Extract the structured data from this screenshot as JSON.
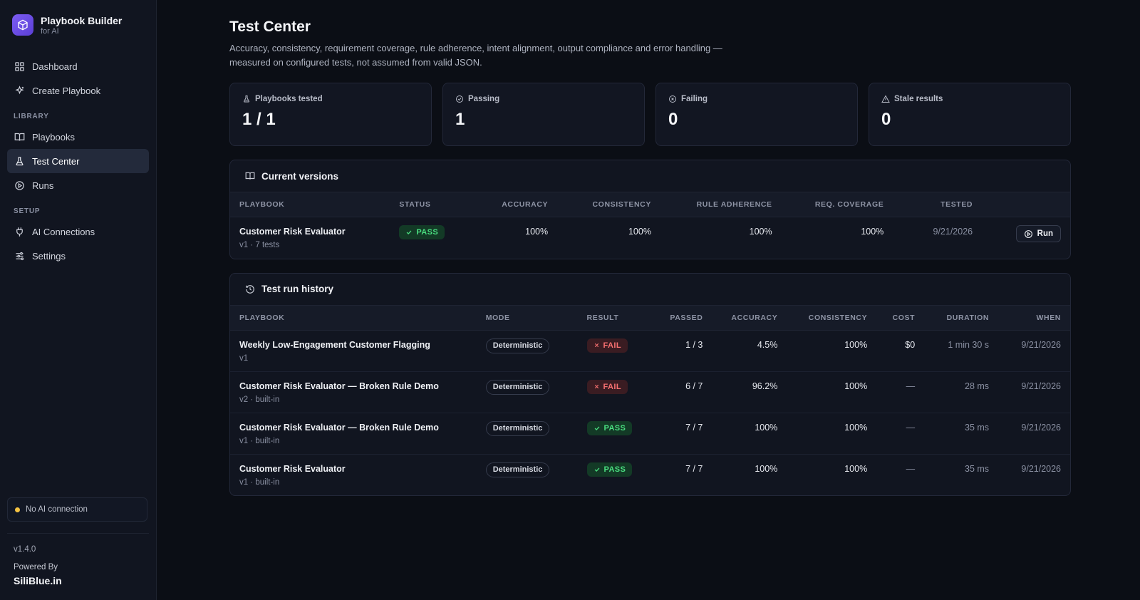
{
  "brand": {
    "title": "Playbook Builder",
    "subtitle": "for AI",
    "icon": "cube-icon",
    "accent": "#6d4ce6"
  },
  "nav": {
    "dashboard": "Dashboard",
    "create": "Create Playbook",
    "library_label": "LIBRARY",
    "playbooks": "Playbooks",
    "test_center": "Test Center",
    "runs": "Runs",
    "setup_label": "SETUP",
    "ai_connections": "AI Connections",
    "settings": "Settings"
  },
  "ai_status": {
    "text": "No AI connection",
    "color": "#f5c242"
  },
  "version": "v1.4.0",
  "powered_by": {
    "label": "Powered By",
    "brand": "SiliBlue.in"
  },
  "page": {
    "title": "Test Center",
    "description": "Accuracy, consistency, requirement coverage, rule adherence, intent alignment, output compliance and error handling — measured on configured tests, not assumed from valid JSON."
  },
  "stats": [
    {
      "label": "Playbooks tested",
      "value": "1 / 1",
      "icon": "flask-icon"
    },
    {
      "label": "Passing",
      "value": "1",
      "icon": "check-circle-icon"
    },
    {
      "label": "Failing",
      "value": "0",
      "icon": "x-circle-icon"
    },
    {
      "label": "Stale results",
      "value": "0",
      "icon": "warning-icon"
    }
  ],
  "current_versions": {
    "title": "Current versions",
    "headers": [
      "PLAYBOOK",
      "STATUS",
      "ACCURACY",
      "CONSISTENCY",
      "RULE ADHERENCE",
      "REQ. COVERAGE",
      "TESTED"
    ],
    "rows": [
      {
        "name": "Customer Risk Evaluator",
        "sub": "v1 · 7 tests",
        "status": "PASS",
        "accuracy": "100%",
        "consistency": "100%",
        "rule_adherence": "100%",
        "req_coverage": "100%",
        "tested": "9/21/2026",
        "action": "Run"
      }
    ]
  },
  "history": {
    "title": "Test run history",
    "headers": [
      "PLAYBOOK",
      "MODE",
      "RESULT",
      "PASSED",
      "ACCURACY",
      "CONSISTENCY",
      "COST",
      "DURATION",
      "WHEN"
    ],
    "rows": [
      {
        "name": "Weekly Low-Engagement Customer Flagging",
        "sub": "v1",
        "mode": "Deterministic",
        "result": "FAIL",
        "passed": "1 / 3",
        "accuracy": "4.5%",
        "consistency": "100%",
        "cost": "$0",
        "duration": "1 min 30 s",
        "when": "9/21/2026"
      },
      {
        "name": "Customer Risk Evaluator — Broken Rule Demo",
        "sub": "v2 · built-in",
        "mode": "Deterministic",
        "result": "FAIL",
        "passed": "6 / 7",
        "accuracy": "96.2%",
        "consistency": "100%",
        "cost": "—",
        "duration": "28 ms",
        "when": "9/21/2026"
      },
      {
        "name": "Customer Risk Evaluator — Broken Rule Demo",
        "sub": "v1 · built-in",
        "mode": "Deterministic",
        "result": "PASS",
        "passed": "7 / 7",
        "accuracy": "100%",
        "consistency": "100%",
        "cost": "—",
        "duration": "35 ms",
        "when": "9/21/2026"
      },
      {
        "name": "Customer Risk Evaluator",
        "sub": "v1 · built-in",
        "mode": "Deterministic",
        "result": "PASS",
        "passed": "7 / 7",
        "accuracy": "100%",
        "consistency": "100%",
        "cost": "—",
        "duration": "35 ms",
        "when": "9/21/2026"
      }
    ]
  }
}
